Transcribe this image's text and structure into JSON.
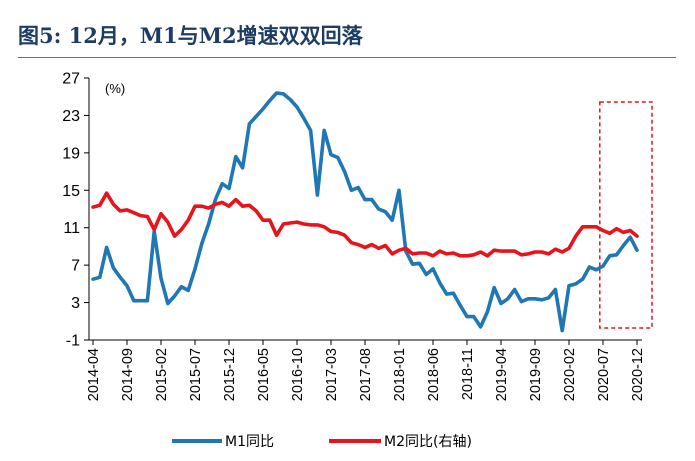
{
  "title": "图5: 12月，M1与M2增速双双回落",
  "chart_data": {
    "type": "line",
    "unit_label": "(%)",
    "ylim": [
      -1,
      27
    ],
    "yticks": [
      -1,
      3,
      7,
      11,
      15,
      19,
      23,
      27
    ],
    "xticks": [
      "2014-04",
      "2014-09",
      "2015-02",
      "2015-07",
      "2015-12",
      "2016-05",
      "2016-10",
      "2017-03",
      "2017-08",
      "2018-01",
      "2018-06",
      "2018-11",
      "2019-04",
      "2019-09",
      "2020-02",
      "2020-07",
      "2020-12"
    ],
    "x": [
      "2014-04",
      "2014-05",
      "2014-06",
      "2014-07",
      "2014-08",
      "2014-09",
      "2014-10",
      "2014-11",
      "2014-12",
      "2015-01",
      "2015-02",
      "2015-03",
      "2015-04",
      "2015-05",
      "2015-06",
      "2015-07",
      "2015-08",
      "2015-09",
      "2015-10",
      "2015-11",
      "2015-12",
      "2016-01",
      "2016-02",
      "2016-03",
      "2016-04",
      "2016-05",
      "2016-06",
      "2016-07",
      "2016-08",
      "2016-09",
      "2016-10",
      "2016-11",
      "2016-12",
      "2017-01",
      "2017-02",
      "2017-03",
      "2017-04",
      "2017-05",
      "2017-06",
      "2017-07",
      "2017-08",
      "2017-09",
      "2017-10",
      "2017-11",
      "2017-12",
      "2018-01",
      "2018-02",
      "2018-03",
      "2018-04",
      "2018-05",
      "2018-06",
      "2018-07",
      "2018-08",
      "2018-09",
      "2018-10",
      "2018-11",
      "2018-12",
      "2019-01",
      "2019-02",
      "2019-03",
      "2019-04",
      "2019-05",
      "2019-06",
      "2019-07",
      "2019-08",
      "2019-09",
      "2019-10",
      "2019-11",
      "2019-12",
      "2020-01",
      "2020-02",
      "2020-03",
      "2020-04",
      "2020-05",
      "2020-06",
      "2020-07",
      "2020-08",
      "2020-09",
      "2020-10",
      "2020-11",
      "2020-12"
    ],
    "series": [
      {
        "name": "M1同比",
        "axis": "left",
        "color": "#1f77b4",
        "values": [
          5.5,
          5.7,
          8.9,
          6.7,
          5.7,
          4.8,
          3.2,
          3.2,
          3.2,
          10.6,
          5.6,
          2.9,
          3.7,
          4.7,
          4.3,
          6.6,
          9.3,
          11.4,
          14.0,
          15.7,
          15.2,
          18.6,
          17.4,
          22.1,
          22.9,
          23.7,
          24.6,
          25.4,
          25.3,
          24.7,
          23.9,
          22.7,
          21.4,
          14.5,
          21.4,
          18.8,
          18.5,
          17.0,
          15.0,
          15.3,
          14.0,
          14.0,
          13.0,
          12.7,
          11.8,
          15.0,
          8.5,
          7.1,
          7.2,
          6.0,
          6.6,
          5.1,
          3.9,
          4.0,
          2.7,
          1.5,
          1.5,
          0.4,
          2.0,
          4.6,
          2.9,
          3.4,
          4.4,
          3.1,
          3.4,
          3.4,
          3.3,
          3.5,
          4.4,
          0.0,
          4.8,
          5.0,
          5.5,
          6.8,
          6.5,
          6.9,
          8.0,
          8.1,
          9.1,
          10.0,
          8.6
        ]
      },
      {
        "name": "M2同比(右轴)",
        "axis": "right",
        "color": "#e8141c",
        "values": [
          13.2,
          13.4,
          14.7,
          13.5,
          12.8,
          12.9,
          12.6,
          12.3,
          12.2,
          10.8,
          12.5,
          11.6,
          10.1,
          10.8,
          11.8,
          13.3,
          13.3,
          13.1,
          13.5,
          13.7,
          13.3,
          14.0,
          13.3,
          13.4,
          12.8,
          11.8,
          11.8,
          10.2,
          11.4,
          11.5,
          11.6,
          11.4,
          11.3,
          11.3,
          11.1,
          10.6,
          10.5,
          10.2,
          9.4,
          9.2,
          8.9,
          9.2,
          8.8,
          9.1,
          8.2,
          8.6,
          8.8,
          8.2,
          8.3,
          8.3,
          8.0,
          8.5,
          8.2,
          8.3,
          8.0,
          8.0,
          8.1,
          8.4,
          8.0,
          8.6,
          8.5,
          8.5,
          8.5,
          8.1,
          8.2,
          8.4,
          8.4,
          8.2,
          8.7,
          8.4,
          8.8,
          10.1,
          11.1,
          11.1,
          11.1,
          10.7,
          10.4,
          10.9,
          10.5,
          10.7,
          10.1
        ]
      }
    ],
    "highlight_range": [
      "2020-08",
      "2020-12"
    ],
    "legend_position": "bottom",
    "grid": false
  }
}
